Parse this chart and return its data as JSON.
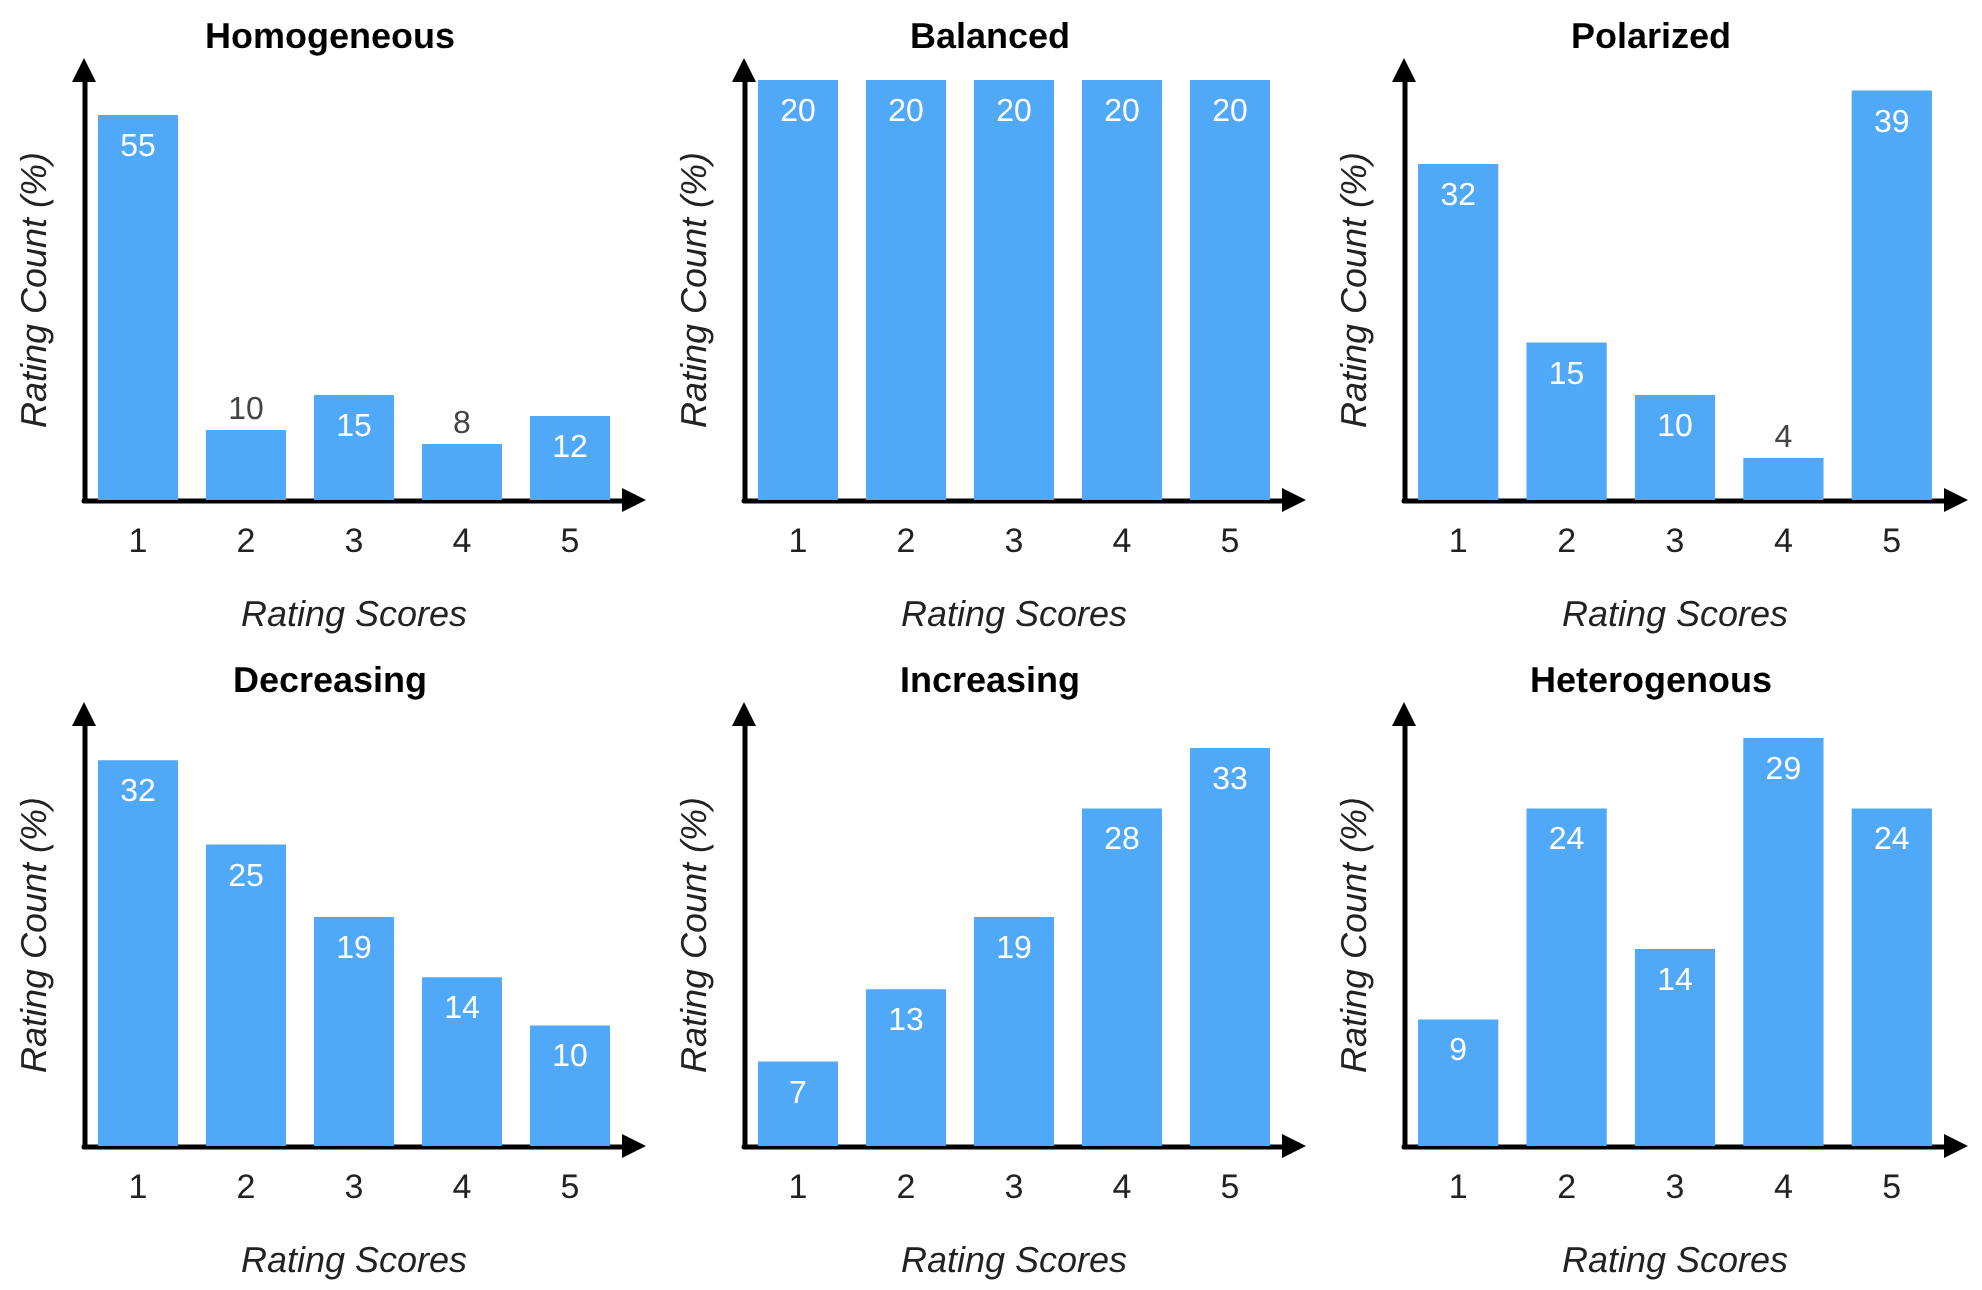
{
  "chart_data": [
    {
      "type": "bar",
      "title": "Homogeneous",
      "xlabel": "Rating Scores",
      "ylabel": "Rating Count (%)",
      "categories": [
        "1",
        "2",
        "3",
        "4",
        "5"
      ],
      "values": [
        55,
        10,
        15,
        8,
        12
      ],
      "color": "#4fa8f8",
      "data_labels": true,
      "tick_labels": "x"
    },
    {
      "type": "bar",
      "title": "Balanced",
      "xlabel": "Rating Scores",
      "ylabel": "Rating Count (%)",
      "categories": [
        "1",
        "2",
        "3",
        "4",
        "5"
      ],
      "values": [
        20,
        20,
        20,
        20,
        20
      ],
      "color": "#4fa8f8",
      "data_labels": true,
      "tick_labels": "x"
    },
    {
      "type": "bar",
      "title": "Polarized",
      "xlabel": "Rating Scores",
      "ylabel": "Rating Count (%)",
      "categories": [
        "1",
        "2",
        "3",
        "4",
        "5"
      ],
      "values": [
        32,
        15,
        10,
        4,
        39
      ],
      "color": "#4fa8f8",
      "data_labels": true,
      "tick_labels": "x"
    },
    {
      "type": "bar",
      "title": "Decreasing",
      "xlabel": "Rating Scores",
      "ylabel": "Rating Count (%)",
      "categories": [
        "1",
        "2",
        "3",
        "4",
        "5"
      ],
      "values": [
        32,
        25,
        19,
        14,
        10
      ],
      "color": "#4fa8f8",
      "data_labels": true,
      "tick_labels": "x"
    },
    {
      "type": "bar",
      "title": "Increasing",
      "xlabel": "Rating Scores",
      "ylabel": "Rating Count (%)",
      "categories": [
        "1",
        "2",
        "3",
        "4",
        "5"
      ],
      "values": [
        7,
        13,
        19,
        28,
        33
      ],
      "color": "#4fa8f8",
      "data_labels": true,
      "tick_labels": "x"
    },
    {
      "type": "bar",
      "title": "Heterogenous",
      "xlabel": "Rating Scores",
      "ylabel": "Rating Count (%)",
      "categories": [
        "1",
        "2",
        "3",
        "4",
        "5"
      ],
      "values": [
        9,
        24,
        14,
        29,
        24
      ],
      "color": "#4fa8f8",
      "data_labels": true,
      "tick_labels": "x"
    }
  ]
}
